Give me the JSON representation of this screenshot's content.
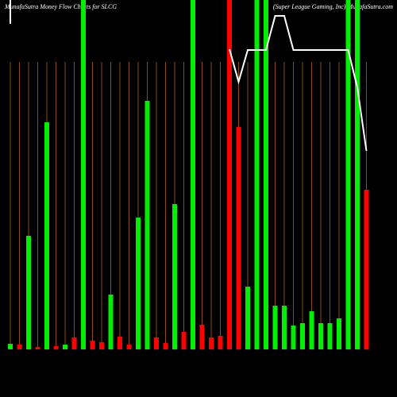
{
  "chart_data": {
    "type": "bar",
    "title": "MunafaSutra  Money Flow  Charts for SLCG",
    "subtitle": "(Super League    Gaming, Inc) MunafaSutra.com",
    "categories": [
      null,
      null,
      null,
      null,
      null,
      null,
      null,
      null,
      null,
      null,
      null,
      null,
      null,
      null,
      null,
      null,
      null,
      null,
      null,
      null,
      null,
      null,
      null,
      null,
      null,
      null,
      null,
      null,
      null,
      null,
      null,
      null,
      null,
      null,
      null,
      null,
      null,
      null,
      null,
      null
    ],
    "values": [
      7,
      6,
      143,
      3,
      286,
      4,
      6,
      15,
      440,
      11,
      9,
      69,
      16,
      6,
      166,
      313,
      15,
      8,
      183,
      22,
      440,
      31,
      15,
      17,
      440,
      280,
      79,
      440,
      440,
      55,
      55,
      30,
      33,
      48,
      33,
      33,
      39,
      440,
      440,
      201
    ],
    "colors": [
      "#00ee00",
      "#ff0000",
      "#00ee00",
      "#ff0000",
      "#00ee00",
      "#ff0000",
      "#00ee00",
      "#ff0000",
      "#00ee00",
      "#ff0000",
      "#ff0000",
      "#00ee00",
      "#ff0000",
      "#ff0000",
      "#00ee00",
      "#00ee00",
      "#ff0000",
      "#ff0000",
      "#00ee00",
      "#ff0000",
      "#00ee00",
      "#ff0000",
      "#ff0000",
      "#ff0000",
      "#ff0000",
      "#ff0000",
      "#00ee00",
      "#00ee00",
      "#00ee00",
      "#00ee00",
      "#00ee00",
      "#00ee00",
      "#00ee00",
      "#00ee00",
      "#00ee00",
      "#00ee00",
      "#00ee00",
      "#00ee00",
      "#00ee00",
      "#ff0000"
    ],
    "line": {
      "color": "#ffffff",
      "values": [
        410,
        null,
        null,
        null,
        null,
        null,
        null,
        null,
        null,
        null,
        null,
        null,
        null,
        null,
        null,
        null,
        null,
        null,
        null,
        null,
        null,
        null,
        null,
        null,
        378,
        337,
        377,
        377,
        377,
        420,
        420,
        377,
        377,
        377,
        377,
        377,
        377,
        377,
        330,
        250
      ]
    },
    "ylim": [
      0,
      440
    ]
  }
}
